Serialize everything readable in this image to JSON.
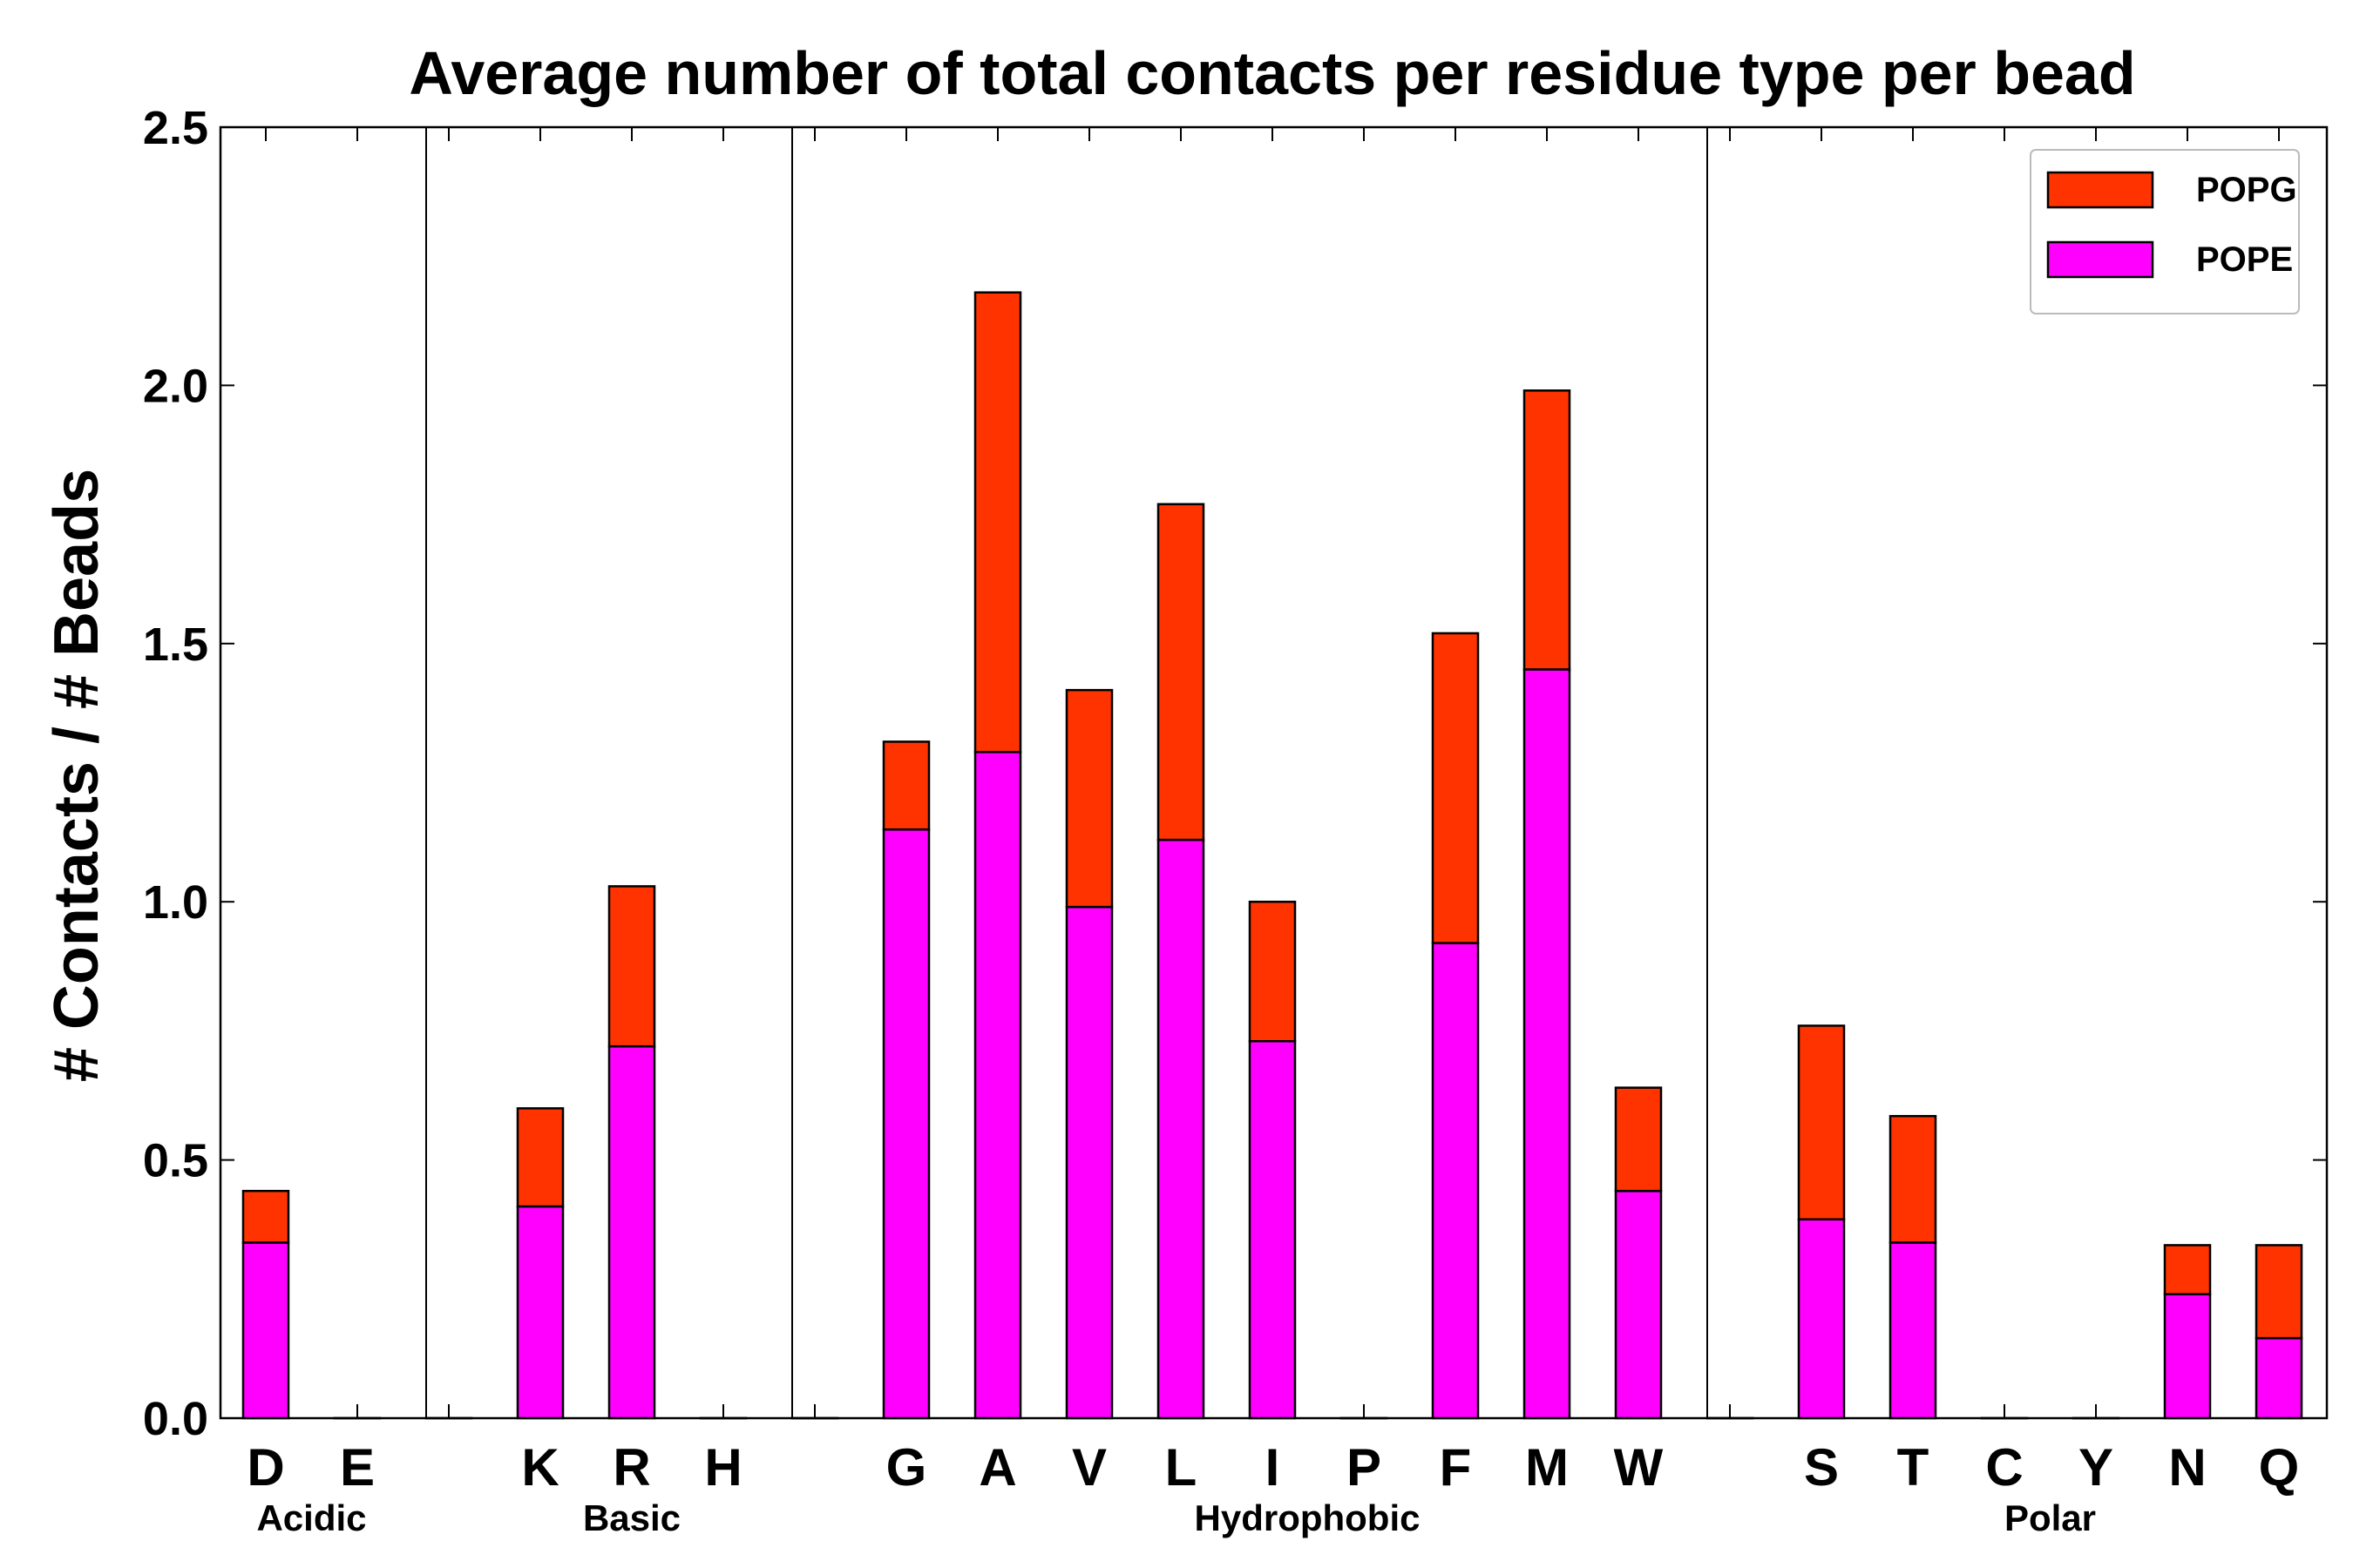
{
  "chart_data": {
    "type": "bar",
    "stacked": true,
    "title": "Average number of total contacts per residue type per bead",
    "xlabel": "",
    "ylabel": "# Contacts / # Beads",
    "ylim": [
      0,
      2.5
    ],
    "yticks": [
      "0.0",
      "0.5",
      "1.0",
      "1.5",
      "2.0",
      "2.5"
    ],
    "categories": [
      "D",
      "E",
      "",
      "K",
      "R",
      "H",
      "",
      "G",
      "A",
      "V",
      "L",
      "I",
      "P",
      "F",
      "M",
      "W",
      "",
      "S",
      "T",
      "C",
      "Y",
      "N",
      "Q"
    ],
    "series": [
      {
        "name": "POPE",
        "color": "#ff00ff",
        "values": [
          0.34,
          0,
          0,
          0.41,
          0.72,
          0,
          0,
          1.14,
          1.29,
          0.99,
          1.12,
          0.73,
          0,
          0.92,
          1.45,
          0.44,
          0,
          0.385,
          0.34,
          0,
          0,
          0.24,
          0.155
        ]
      },
      {
        "name": "POPG",
        "color": "#ff3300",
        "values": [
          0.1,
          0,
          0,
          0.19,
          0.31,
          0,
          0,
          0.17,
          0.89,
          0.42,
          0.65,
          0.27,
          0,
          0.6,
          0.54,
          0.2,
          0,
          0.375,
          0.245,
          0,
          0,
          0.095,
          0.18
        ]
      }
    ],
    "groups": [
      {
        "label": "Acidic",
        "members": [
          "D",
          "E"
        ]
      },
      {
        "label": "Basic",
        "members": [
          "K",
          "R",
          "H"
        ]
      },
      {
        "label": "Hydrophobic",
        "members": [
          "G",
          "A",
          "V",
          "L",
          "I",
          "P",
          "F",
          "M",
          "W"
        ]
      },
      {
        "label": "Polar",
        "members": [
          "S",
          "T",
          "C",
          "Y",
          "N",
          "Q"
        ]
      }
    ],
    "legend": {
      "position": "top-right",
      "entries": [
        "POPG",
        "POPE"
      ]
    },
    "grid": false
  }
}
